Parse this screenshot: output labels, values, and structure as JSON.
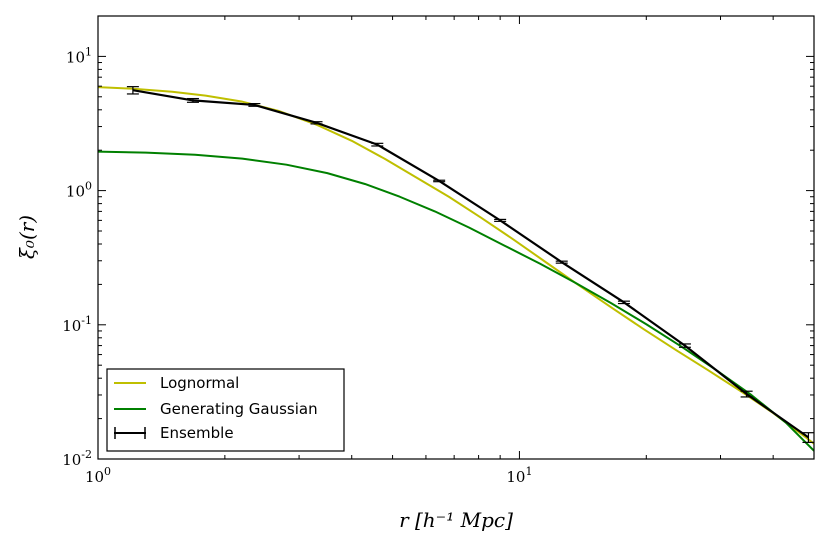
{
  "chart_data": {
    "type": "line",
    "title": "",
    "xscale": "log",
    "yscale": "log",
    "xlim": [
      1,
      50
    ],
    "ylim": [
      0.01,
      20
    ],
    "xlabel": "r [h⁻¹ Mpc]",
    "ylabel": "ξ₀(r)",
    "x_ticks": [
      {
        "value": 1,
        "base": "10",
        "exp": "0"
      },
      {
        "value": 10,
        "base": "10",
        "exp": "1"
      }
    ],
    "y_ticks": [
      {
        "value": 0.01,
        "base": "10",
        "exp": "-2"
      },
      {
        "value": 0.1,
        "base": "10",
        "exp": "-1"
      },
      {
        "value": 1,
        "base": "10",
        "exp": "0"
      },
      {
        "value": 10,
        "base": "10",
        "exp": "1"
      }
    ],
    "legend_position": "bottom-left",
    "series": [
      {
        "name": "Lognormal",
        "color": "#bfbf00",
        "style": "line",
        "x": [
          1.0,
          1.2,
          1.5,
          1.8,
          2.2,
          2.7,
          3.3,
          4.0,
          4.8,
          5.7,
          6.8,
          8.1,
          9.7,
          11.6,
          13.8,
          16.5,
          19.7,
          23.5,
          28.0,
          33.5,
          40.0,
          47.8,
          50.0
        ],
        "y": [
          5.9,
          5.75,
          5.45,
          5.1,
          4.6,
          3.9,
          3.1,
          2.35,
          1.72,
          1.25,
          0.9,
          0.63,
          0.43,
          0.29,
          0.198,
          0.135,
          0.093,
          0.065,
          0.046,
          0.032,
          0.022,
          0.0145,
          0.013
        ]
      },
      {
        "name": "Generating Gaussian",
        "color": "#008000",
        "style": "line",
        "x": [
          1.0,
          1.3,
          1.7,
          2.2,
          2.8,
          3.5,
          4.3,
          5.2,
          6.3,
          7.6,
          9.2,
          11.2,
          13.6,
          16.5,
          20.0,
          24.2,
          29.3,
          35.5,
          43.0,
          50.0
        ],
        "y": [
          1.95,
          1.92,
          1.85,
          1.73,
          1.56,
          1.35,
          1.12,
          0.9,
          0.7,
          0.53,
          0.39,
          0.285,
          0.205,
          0.145,
          0.101,
          0.069,
          0.046,
          0.03,
          0.0185,
          0.0115
        ]
      },
      {
        "name": "Ensemble",
        "color": "#000000",
        "style": "errorbar",
        "x": [
          1.21,
          1.68,
          2.35,
          3.3,
          4.6,
          6.45,
          9.0,
          12.6,
          17.7,
          24.7,
          34.6,
          48.5
        ],
        "y": [
          5.6,
          4.7,
          4.35,
          3.2,
          2.2,
          1.18,
          0.6,
          0.293,
          0.147,
          0.07,
          0.0305,
          0.0145
        ],
        "yerr": [
          0.35,
          0.15,
          0.1,
          0.06,
          0.05,
          0.015,
          0.01,
          0.005,
          0.003,
          0.002,
          0.0015,
          0.0012
        ]
      }
    ]
  }
}
